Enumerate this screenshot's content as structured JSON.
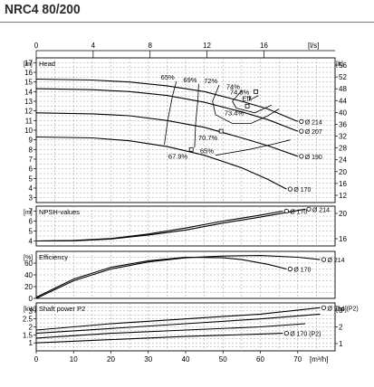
{
  "header": {
    "title": "NRC4 80/200"
  },
  "chart_data": [
    {
      "type": "line",
      "panel": "head",
      "title": "Head",
      "x_top_unit": "[l/s]",
      "x_top_ticks": [
        "0",
        "4",
        "8",
        "12",
        "16"
      ],
      "x_top_range": [
        0,
        21
      ],
      "ylabel_left": "[m]",
      "ylabel_right": "[ft]",
      "ylim": [
        2.5,
        17.5
      ],
      "y_ticks_left": [
        "3",
        "4",
        "5",
        "6",
        "7",
        "8",
        "9",
        "10",
        "11",
        "12",
        "13",
        "14",
        "15",
        "16",
        "17"
      ],
      "y_ticks_right": [
        "12",
        "16",
        "20",
        "24",
        "28",
        "32",
        "36",
        "40",
        "44",
        "48",
        "52",
        "56"
      ],
      "series": [
        {
          "name": "Ø 214",
          "x": [
            0,
            15,
            25,
            35,
            45,
            55,
            62,
            70
          ],
          "y": [
            15.3,
            15.2,
            15.0,
            14.6,
            14.0,
            13.0,
            12.2,
            10.9
          ]
        },
        {
          "name": "Ø 207",
          "x": [
            0,
            15,
            25,
            35,
            45,
            55,
            62,
            70
          ],
          "y": [
            14.3,
            14.2,
            14.0,
            13.6,
            12.9,
            11.9,
            11.1,
            9.9
          ]
        },
        {
          "name": "Ø 190",
          "x": [
            0,
            15,
            25,
            35,
            45,
            55,
            62,
            70
          ],
          "y": [
            11.8,
            11.7,
            11.5,
            11.0,
            10.3,
            9.2,
            8.4,
            7.3
          ]
        },
        {
          "name": "Ø 170",
          "x": [
            0,
            15,
            25,
            35,
            45,
            55,
            62,
            67
          ],
          "y": [
            9.3,
            9.2,
            8.9,
            8.3,
            7.4,
            6.1,
            4.9,
            3.9
          ]
        }
      ],
      "iso_curves": [
        {
          "label": "65%",
          "x": [
            37.5,
            36.5,
            35.2,
            34.3
          ],
          "y": [
            15.05,
            13.6,
            11.0,
            8.5
          ]
        },
        {
          "label": "69%",
          "x": [
            43.5,
            43.3,
            42.7,
            42.4
          ],
          "y": [
            14.8,
            13.2,
            10.8,
            8.2
          ]
        },
        {
          "label": "72%",
          "x": [
            49.0,
            47.2,
            48.0,
            52.5,
            57.5,
            62.0,
            65.0
          ],
          "y": [
            14.7,
            13.0,
            11.6,
            10.7,
            10.7,
            11.5,
            12.2
          ]
        },
        {
          "label": "74%",
          "x": [
            55.0,
            52.5,
            53.5,
            58.5,
            63.0
          ],
          "y": [
            14.1,
            13.0,
            12.3,
            11.8,
            12.6
          ]
        },
        {
          "label": "74.3%",
          "x": [
            57.5,
            57.0,
            58.0,
            59.5
          ],
          "y": [
            13.5,
            13.1,
            13.3,
            13.6
          ]
        },
        {
          "label": "65%",
          "x": [
            48.0,
            57.0,
            64.0,
            68.0
          ],
          "y": [
            7.4,
            8.0,
            8.6,
            9.0
          ]
        }
      ],
      "points": [
        {
          "label": "Eff.",
          "x": 58.8,
          "y": 14.0
        },
        {
          "label": "73.4%",
          "x": 56.5,
          "y": 12.5
        },
        {
          "label": "70.7%",
          "x": 49.5,
          "y": 9.9
        },
        {
          "label": "67.9%",
          "x": 41.5,
          "y": 8.0
        }
      ],
      "annotations": [
        "65%",
        "69%",
        "72%",
        "74%",
        "74.3%",
        "73.4%",
        "70.7%",
        "67.9%",
        "65%",
        "Eff."
      ],
      "grid": true
    },
    {
      "type": "line",
      "panel": "npsh",
      "title": "NPSH-values",
      "ylabel_left": "[m]",
      "ylim": [
        3.5,
        7.5
      ],
      "y_ticks_left": [
        "4",
        "5",
        "6",
        "7"
      ],
      "y_ticks_right": [
        "16",
        "20"
      ],
      "series": [
        {
          "name": "Ø 214",
          "x": [
            0,
            10,
            20,
            30,
            40,
            50,
            60,
            72
          ],
          "y": [
            4.0,
            4.02,
            4.2,
            4.6,
            5.1,
            5.8,
            6.4,
            7.2
          ]
        },
        {
          "name": "Ø 170",
          "x": [
            0,
            10,
            20,
            30,
            40,
            50,
            60,
            66
          ],
          "y": [
            4.0,
            4.05,
            4.25,
            4.7,
            5.3,
            6.0,
            6.6,
            7.0
          ]
        }
      ],
      "grid": true
    },
    {
      "type": "line",
      "panel": "efficiency",
      "title": "Efficiency",
      "ylabel_left": "[%]",
      "ylim": [
        0,
        80
      ],
      "y_ticks_left": [
        "0",
        "20",
        "40",
        "60"
      ],
      "series": [
        {
          "name": "Ø 214",
          "x": [
            0,
            10,
            20,
            30,
            40,
            50,
            60,
            70,
            76
          ],
          "y": [
            0,
            30,
            50,
            62,
            69,
            72,
            73,
            70,
            66
          ]
        },
        {
          "name": "Ø 170",
          "x": [
            0,
            10,
            20,
            30,
            40,
            50,
            55,
            62,
            67
          ],
          "y": [
            2,
            33,
            53,
            64,
            70,
            69,
            66,
            58,
            50
          ]
        }
      ],
      "grid": true
    },
    {
      "type": "line",
      "panel": "shaft-power",
      "title": "Shaft power P2",
      "ylabel_left": "[kW]",
      "ylabel_right": "[hp]",
      "ylim": [
        0.5,
        3.5
      ],
      "y_ticks_left": [
        "1",
        "1.5",
        "2",
        "2.5",
        "3"
      ],
      "y_ticks_right": [
        "1",
        "2",
        "3"
      ],
      "series": [
        {
          "name": "Ø 214 (P2)",
          "x": [
            0,
            20,
            40,
            60,
            76
          ],
          "y": [
            1.8,
            2.2,
            2.5,
            2.8,
            3.2
          ]
        },
        {
          "name": "",
          "x": [
            0,
            20,
            40,
            60,
            76
          ],
          "y": [
            1.6,
            1.9,
            2.2,
            2.5,
            2.8
          ]
        },
        {
          "name": "",
          "x": [
            0,
            20,
            40,
            60,
            72
          ],
          "y": [
            1.3,
            1.6,
            1.8,
            2.0,
            2.2
          ]
        },
        {
          "name": "Ø 170 (P2)",
          "x": [
            0,
            20,
            40,
            60,
            66
          ],
          "y": [
            1.0,
            1.2,
            1.4,
            1.55,
            1.6
          ]
        }
      ],
      "xlabel": "[m³/h]",
      "x_ticks": [
        "0",
        "10",
        "20",
        "30",
        "40",
        "50",
        "60",
        "70"
      ],
      "xlim": [
        0,
        80
      ],
      "grid": true
    }
  ]
}
